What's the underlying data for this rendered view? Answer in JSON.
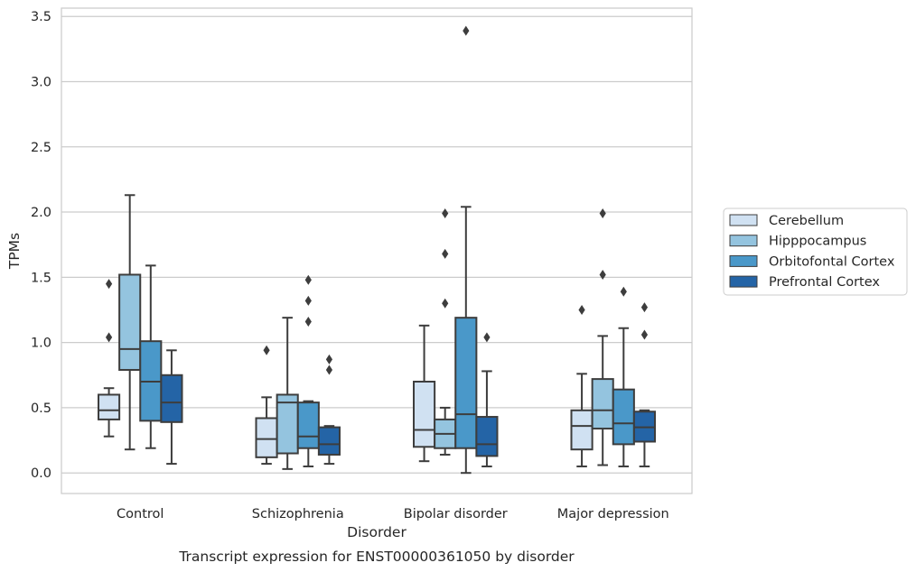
{
  "chart_data": {
    "type": "boxplot",
    "title": "Transcript expression for ENST00000361050 by disorder",
    "xlabel": "Disorder",
    "ylabel": "TPMs",
    "ylim": [
      -0.16,
      3.56
    ],
    "yticks": [
      0.0,
      0.5,
      1.0,
      1.5,
      2.0,
      2.5,
      3.0,
      3.5
    ],
    "ytick_labels": [
      "0.0",
      "0.5",
      "1.0",
      "1.5",
      "2.0",
      "2.5",
      "3.0",
      "3.5"
    ],
    "grid": "horizontal",
    "legend_position": "right",
    "categories": [
      "Control",
      "Schizophrenia",
      "Bipolar disorder",
      "Major depression"
    ],
    "series": [
      {
        "name": "Cerebellum",
        "color": "#d0e1f2",
        "boxes": [
          {
            "whislo": 0.28,
            "q1": 0.41,
            "med": 0.48,
            "q3": 0.6,
            "whishi": 0.65,
            "fliers": [
              1.04,
              1.45
            ]
          },
          {
            "whislo": 0.07,
            "q1": 0.12,
            "med": 0.26,
            "q3": 0.42,
            "whishi": 0.58,
            "fliers": [
              0.94
            ]
          },
          {
            "whislo": 0.09,
            "q1": 0.2,
            "med": 0.33,
            "q3": 0.7,
            "whishi": 1.13,
            "fliers": []
          },
          {
            "whislo": 0.05,
            "q1": 0.18,
            "med": 0.36,
            "q3": 0.48,
            "whishi": 0.76,
            "fliers": [
              1.25
            ]
          }
        ]
      },
      {
        "name": "Hipppocampus",
        "color": "#94c4df",
        "boxes": [
          {
            "whislo": 0.18,
            "q1": 0.79,
            "med": 0.95,
            "q3": 1.52,
            "whishi": 2.13,
            "fliers": []
          },
          {
            "whislo": 0.03,
            "q1": 0.15,
            "med": 0.54,
            "q3": 0.6,
            "whishi": 1.19,
            "fliers": []
          },
          {
            "whislo": 0.14,
            "q1": 0.19,
            "med": 0.3,
            "q3": 0.41,
            "whishi": 0.5,
            "fliers": [
              1.3,
              1.68,
              1.99
            ]
          },
          {
            "whislo": 0.06,
            "q1": 0.34,
            "med": 0.48,
            "q3": 0.72,
            "whishi": 1.05,
            "fliers": [
              1.52,
              1.99
            ]
          }
        ]
      },
      {
        "name": "Orbitofontal Cortex",
        "color": "#4a98c9",
        "boxes": [
          {
            "whislo": 0.19,
            "q1": 0.4,
            "med": 0.7,
            "q3": 1.01,
            "whishi": 1.59,
            "fliers": []
          },
          {
            "whislo": 0.05,
            "q1": 0.19,
            "med": 0.28,
            "q3": 0.54,
            "whishi": 0.55,
            "fliers": [
              1.16,
              1.32,
              1.48
            ]
          },
          {
            "whislo": 0.0,
            "q1": 0.19,
            "med": 0.45,
            "q3": 1.19,
            "whishi": 2.04,
            "fliers": [
              3.39
            ]
          },
          {
            "whislo": 0.05,
            "q1": 0.22,
            "med": 0.38,
            "q3": 0.64,
            "whishi": 1.11,
            "fliers": [
              1.39
            ]
          }
        ]
      },
      {
        "name": "Prefrontal Cortex",
        "color": "#2464a6",
        "boxes": [
          {
            "whislo": 0.07,
            "q1": 0.39,
            "med": 0.54,
            "q3": 0.75,
            "whishi": 0.94,
            "fliers": []
          },
          {
            "whislo": 0.07,
            "q1": 0.14,
            "med": 0.22,
            "q3": 0.35,
            "whishi": 0.36,
            "fliers": [
              0.79,
              0.87
            ]
          },
          {
            "whislo": 0.05,
            "q1": 0.13,
            "med": 0.22,
            "q3": 0.43,
            "whishi": 0.78,
            "fliers": [
              1.04
            ]
          },
          {
            "whislo": 0.05,
            "q1": 0.24,
            "med": 0.35,
            "q3": 0.47,
            "whishi": 0.48,
            "fliers": [
              1.06,
              1.27
            ]
          }
        ]
      }
    ]
  }
}
